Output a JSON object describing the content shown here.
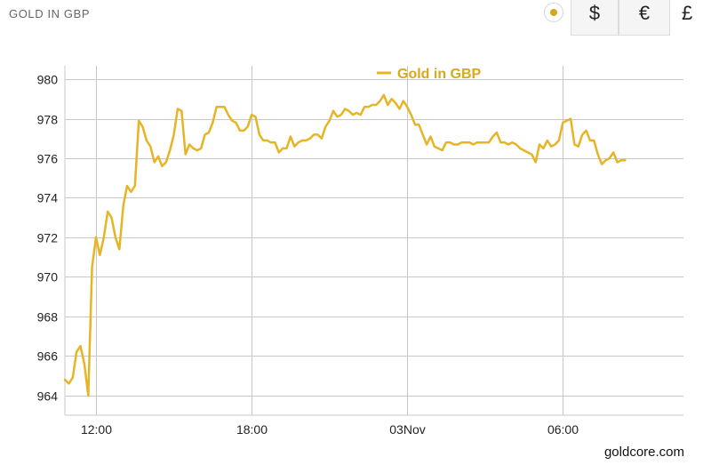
{
  "header": {
    "title": "GOLD IN GBP",
    "currencies": [
      "$",
      "€",
      "£"
    ],
    "selected_currency": "£"
  },
  "footer": {
    "credit": "goldcore.com"
  },
  "colors": {
    "line": "#e6b424",
    "legend_text": "#d9a81e",
    "grid": "#c8c8c8",
    "radio_dot": "#d8a520"
  },
  "chart_data": {
    "type": "line",
    "title": "",
    "xlabel": "",
    "ylabel": "",
    "legend": {
      "label": "Gold in GBP",
      "placement": "top-center"
    },
    "ylim": [
      963,
      980.5
    ],
    "yticks": [
      964,
      966,
      968,
      970,
      972,
      974,
      976,
      978,
      980
    ],
    "xlim": [
      0,
      159
    ],
    "xticks": [
      {
        "at": 8,
        "label": "12:00"
      },
      {
        "at": 48,
        "label": "18:00"
      },
      {
        "at": 88,
        "label": "03Nov"
      },
      {
        "at": 128,
        "label": "06:00"
      }
    ],
    "grid": true,
    "series": [
      {
        "name": "Gold in GBP",
        "values": [
          964.8,
          964.6,
          964.9,
          966.2,
          966.5,
          965.6,
          964.0,
          970.5,
          972.0,
          971.1,
          972.0,
          973.3,
          973.0,
          972.0,
          971.4,
          973.6,
          974.6,
          974.3,
          974.6,
          977.9,
          977.6,
          976.9,
          976.6,
          975.8,
          976.1,
          975.6,
          975.8,
          976.4,
          977.2,
          978.5,
          978.4,
          976.2,
          976.7,
          976.5,
          976.4,
          976.5,
          977.2,
          977.3,
          977.8,
          978.6,
          978.6,
          978.6,
          978.2,
          977.9,
          977.8,
          977.4,
          977.4,
          977.6,
          978.2,
          978.1,
          977.2,
          976.9,
          976.9,
          976.8,
          976.8,
          976.3,
          976.5,
          976.5,
          977.1,
          976.6,
          976.8,
          976.9,
          976.9,
          977.0,
          977.2,
          977.2,
          977.0,
          977.6,
          977.9,
          978.4,
          978.1,
          978.2,
          978.5,
          978.4,
          978.2,
          978.3,
          978.2,
          978.6,
          978.6,
          978.7,
          978.7,
          978.9,
          979.2,
          978.7,
          979.0,
          978.8,
          978.5,
          978.9,
          978.6,
          978.2,
          977.7,
          977.7,
          977.2,
          976.7,
          977.1,
          976.6,
          976.5,
          976.4,
          976.8,
          976.8,
          976.7,
          976.7,
          976.8,
          976.8,
          976.8,
          976.7,
          976.8,
          976.8,
          976.8,
          976.8,
          977.1,
          977.3,
          976.8,
          976.8,
          976.7,
          976.8,
          976.7,
          976.5,
          976.4,
          976.3,
          976.2,
          975.8,
          976.7,
          976.5,
          976.9,
          976.6,
          976.7,
          976.9,
          977.8,
          977.9,
          978.0,
          976.7,
          976.6,
          977.2,
          977.4,
          976.9,
          976.9,
          976.2,
          975.7,
          975.9,
          976.0,
          976.3,
          975.8,
          975.9,
          975.9
        ]
      }
    ]
  }
}
